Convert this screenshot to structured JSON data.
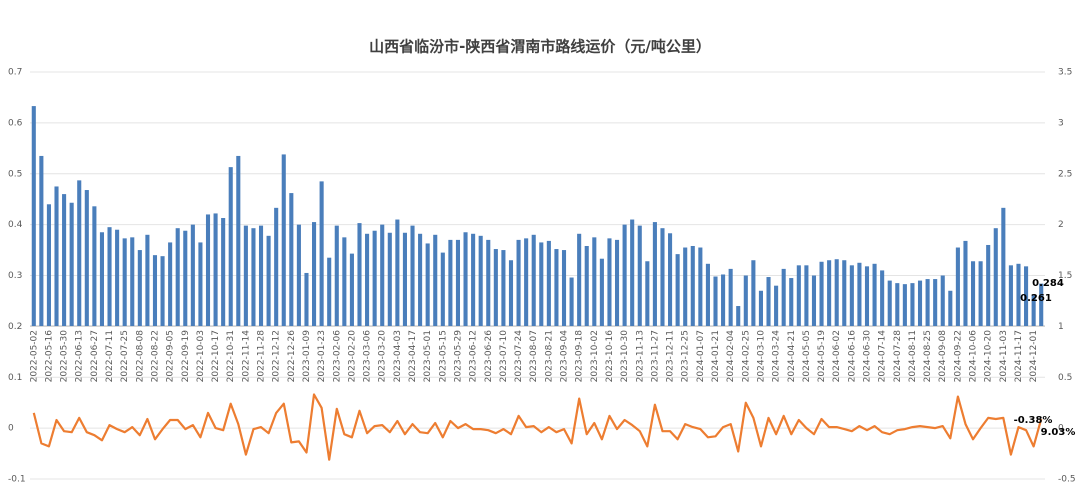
{
  "chart_data": {
    "type": "bar_line",
    "title": "山西省临汾市-陕西省渭南市路线运价（元/吨公里）",
    "categories": [
      "2022-05-02",
      null,
      "2022-05-16",
      null,
      "2022-05-30",
      null,
      "2022-06-13",
      null,
      "2022-06-27",
      null,
      "2022-07-11",
      null,
      "2022-07-25",
      null,
      "2022-08-08",
      null,
      "2022-08-22",
      null,
      "2022-09-05",
      null,
      "2022-09-19",
      null,
      "2022-10-03",
      null,
      "2022-10-17",
      null,
      "2022-10-31",
      null,
      "2022-11-14",
      null,
      "2022-11-28",
      null,
      "2022-12-12",
      null,
      "2022-12-26",
      null,
      "2023-01-09",
      null,
      "2023-01-23",
      null,
      "2023-02-06",
      null,
      "2023-02-20",
      null,
      "2023-03-06",
      null,
      "2023-03-20",
      null,
      "2023-04-03",
      null,
      "2023-04-17",
      null,
      "2023-05-01",
      null,
      "2023-05-15",
      null,
      "2023-05-29",
      null,
      "2023-06-12",
      null,
      "2023-06-26",
      null,
      "2023-07-10",
      null,
      "2023-07-24",
      null,
      "2023-08-07",
      null,
      "2023-08-21",
      null,
      "2023-09-04",
      null,
      "2023-09-18",
      null,
      "2023-10-02",
      null,
      "2023-10-16",
      null,
      "2023-10-30",
      null,
      "2023-11-13",
      null,
      "2023-11-27",
      null,
      "2023-12-11",
      null,
      "2023-12-25",
      null,
      "2024-01-07",
      null,
      "2024-01-21",
      null,
      "2024-02-04",
      null,
      "2024-02-25",
      null,
      "2024-03-10",
      null,
      "2024-03-24",
      null,
      "2024-04-21",
      null,
      "2024-05-05",
      null,
      "2024-05-19",
      null,
      "2024-06-02",
      null,
      "2024-06-16",
      null,
      "2024-06-30",
      null,
      "2024-07-14",
      null,
      "2024-07-28",
      null,
      "2024-08-11",
      null,
      "2024-08-25",
      null,
      "2024-09-08",
      null,
      "2024-09-22",
      null,
      "2024-10-06",
      null,
      "2024-10-20",
      null,
      "2024-11-03",
      null,
      "2024-11-17",
      null,
      "2024-12-01",
      null
    ],
    "series": [
      {
        "type": "bar",
        "color": "#4a7ebb",
        "values": [
          0.633,
          0.535,
          0.44,
          0.475,
          0.46,
          0.443,
          0.487,
          0.468,
          0.436,
          0.385,
          0.395,
          0.39,
          0.373,
          0.375,
          0.35,
          0.38,
          0.34,
          0.338,
          0.365,
          0.393,
          0.388,
          0.4,
          0.365,
          0.42,
          0.422,
          0.413,
          0.513,
          0.535,
          0.398,
          0.393,
          0.398,
          0.378,
          0.433,
          0.538,
          0.462,
          0.4,
          0.305,
          0.405,
          0.485,
          0.335,
          0.398,
          0.375,
          0.343,
          0.403,
          0.382,
          0.388,
          0.4,
          0.384,
          0.41,
          0.384,
          0.398,
          0.382,
          0.363,
          0.38,
          0.345,
          0.37,
          0.37,
          0.385,
          0.382,
          0.378,
          0.37,
          0.352,
          0.35,
          0.33,
          0.37,
          0.373,
          0.38,
          0.365,
          0.368,
          0.352,
          0.35,
          0.296,
          0.382,
          0.358,
          0.375,
          0.333,
          0.373,
          0.37,
          0.4,
          0.41,
          0.398,
          0.328,
          0.405,
          0.393,
          0.383,
          0.342,
          0.355,
          0.358,
          0.355,
          0.323,
          0.298,
          0.302,
          0.313,
          0.24,
          0.3,
          0.33,
          0.27,
          0.297,
          0.28,
          0.313,
          0.295,
          0.32,
          0.32,
          0.3,
          0.327,
          0.33,
          0.332,
          0.33,
          0.32,
          0.325,
          0.318,
          0.323,
          0.31,
          0.29,
          0.285,
          0.283,
          0.285,
          0.29,
          0.293,
          0.293,
          0.3,
          0.27,
          0.355,
          0.368,
          0.328,
          0.328,
          0.36,
          0.393,
          0.433,
          0.32,
          0.323,
          0.318,
          0.261,
          0.284
        ]
      },
      {
        "type": "line",
        "axis": "y2",
        "color": "#ed7d31",
        "values": [
          0.15,
          -0.15,
          -0.18,
          0.08,
          -0.03,
          -0.04,
          0.1,
          -0.04,
          -0.07,
          -0.12,
          0.03,
          -0.01,
          -0.04,
          0.01,
          -0.07,
          0.09,
          -0.11,
          -0.01,
          0.08,
          0.08,
          -0.01,
          0.03,
          -0.09,
          0.15,
          0,
          -0.02,
          0.24,
          0.04,
          -0.26,
          -0.01,
          0.01,
          -0.05,
          0.15,
          0.24,
          -0.14,
          -0.13,
          -0.24,
          0.33,
          0.2,
          -0.31,
          0.19,
          -0.06,
          -0.09,
          0.17,
          -0.05,
          0.02,
          0.03,
          -0.04,
          0.07,
          -0.06,
          0.04,
          -0.04,
          -0.05,
          0.05,
          -0.09,
          0.07,
          0,
          0.04,
          -0.01,
          -0.01,
          -0.02,
          -0.05,
          -0.01,
          -0.06,
          0.12,
          0.01,
          0.02,
          -0.04,
          0.01,
          -0.04,
          -0.01,
          -0.15,
          0.29,
          -0.06,
          0.05,
          -0.11,
          0.12,
          -0.01,
          0.08,
          0.03,
          -0.03,
          -0.18,
          0.23,
          -0.03,
          -0.03,
          -0.11,
          0.04,
          0.01,
          -0.01,
          -0.09,
          -0.08,
          0.01,
          0.04,
          -0.23,
          0.25,
          0.1,
          -0.18,
          0.1,
          -0.06,
          0.12,
          -0.06,
          0.08,
          0,
          -0.06,
          0.09,
          0.01,
          0.01,
          -0.01,
          -0.03,
          0.02,
          -0.02,
          0.02,
          -0.04,
          -0.06,
          -0.02,
          -0.01,
          0.01,
          0.02,
          0.01,
          0,
          0.02,
          -0.1,
          0.31,
          0.04,
          -0.11,
          0,
          0.1,
          0.09,
          0.1,
          -0.26,
          0.01,
          -0.02,
          -0.18,
          0.09
        ]
      }
    ],
    "ylim": [
      -0.1,
      0.7
    ],
    "yticks": [
      -0.1,
      0,
      0.1,
      0.2,
      0.3,
      0.4,
      0.5,
      0.6,
      0.7
    ],
    "y2lim": [
      -0.5,
      3.5
    ],
    "y2ticks": [
      -0.5,
      0,
      0.5,
      1,
      1.5,
      2,
      2.5,
      3,
      3.5
    ],
    "grid": true,
    "annotations": [
      "-0.38%",
      "9.03%"
    ]
  }
}
